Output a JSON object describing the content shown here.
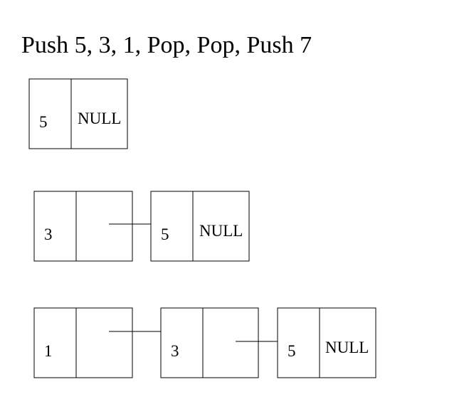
{
  "title": "Push 5, 3, 1, Pop, Pop, Push 7",
  "stacks": [
    {
      "nodes": [
        {
          "value": "5",
          "next": "NULL"
        }
      ]
    },
    {
      "nodes": [
        {
          "value": "3",
          "next": ""
        },
        {
          "value": "5",
          "next": "NULL"
        }
      ]
    },
    {
      "nodes": [
        {
          "value": "1",
          "next": ""
        },
        {
          "value": "3",
          "next": ""
        },
        {
          "value": "5",
          "next": "NULL"
        }
      ]
    }
  ]
}
